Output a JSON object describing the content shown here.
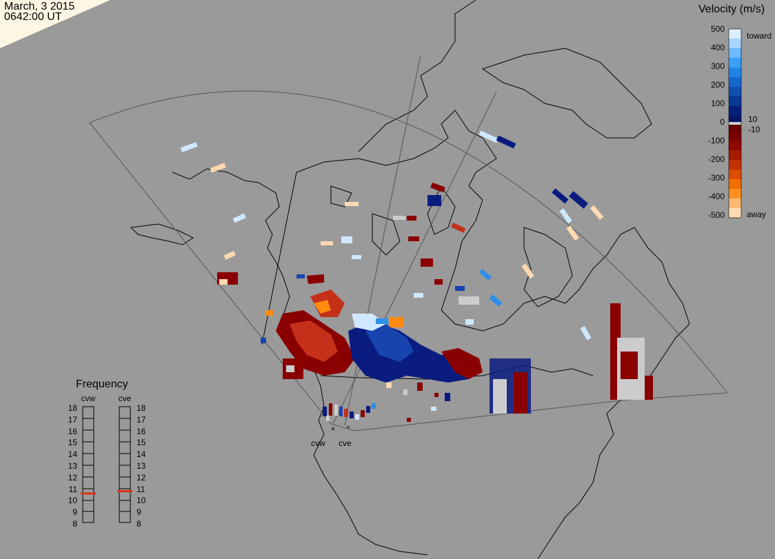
{
  "header": {
    "date": "March, 3 2015",
    "time": "0642:00 UT"
  },
  "velocity_legend": {
    "title": "Velocity (m/s)",
    "ticks": [
      "500",
      "400",
      "300",
      "200",
      "100",
      "0",
      "-100",
      "-200",
      "-300",
      "-400",
      "-500"
    ],
    "inner_ticks": [
      "10",
      "-10"
    ],
    "end_labels": {
      "top": "toward",
      "bottom": "away"
    },
    "colors": {
      "toward_light": "#cfe8ff",
      "toward_mid": "#2e8fe8",
      "toward_dark": "#0a1c80",
      "zero": "#cccccc",
      "away_dark": "#8a0000",
      "away_mid": "#c4301a",
      "away_orange": "#ff8a10",
      "away_light": "#ffd9b0"
    }
  },
  "frequency_panel": {
    "title": "Frequency",
    "radars": [
      "cvw",
      "cve"
    ],
    "levels": [
      "18",
      "17",
      "16",
      "15",
      "14",
      "13",
      "12",
      "11",
      "10",
      "9",
      "8"
    ],
    "current": {
      "cvw": 10.5,
      "cve": 10.7
    },
    "marker_color": "#e03010"
  },
  "radar_sites": [
    "cvw",
    "cve"
  ],
  "map": {
    "background": "#9a9a9a",
    "coastline_color": "#000000",
    "fov_color": "#555555"
  }
}
